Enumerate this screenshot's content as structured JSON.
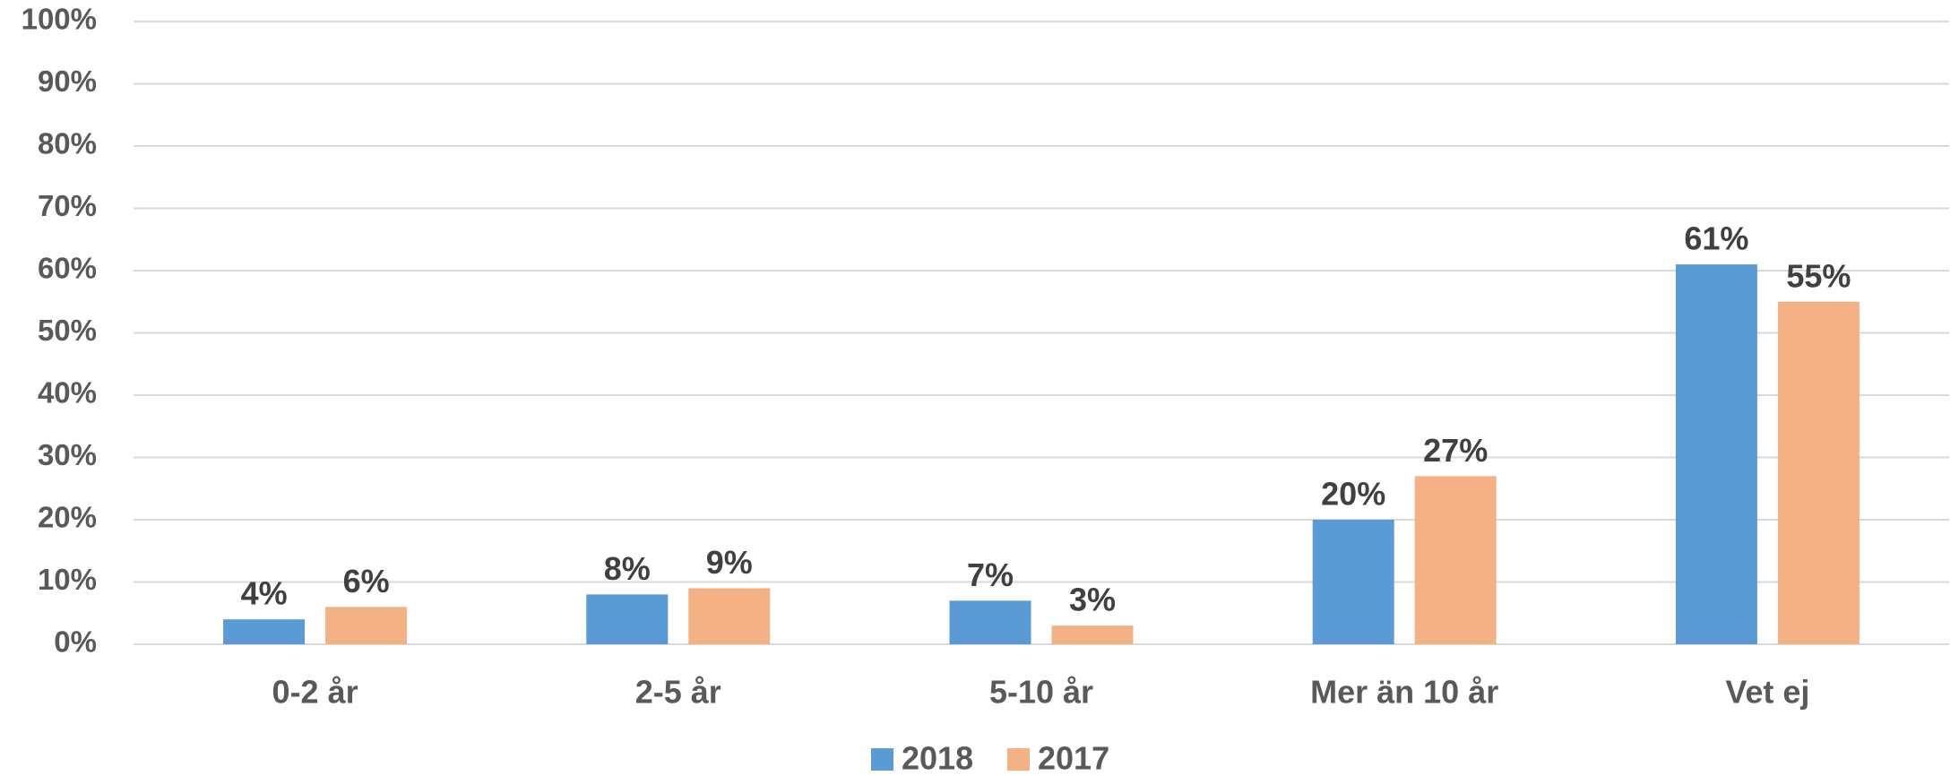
{
  "chart_data": {
    "type": "bar",
    "categories": [
      "0-2 år",
      "2-5 år",
      "5-10 år",
      "Mer än 10 år",
      "Vet ej"
    ],
    "series": [
      {
        "name": "2018",
        "color": "#5b9bd5",
        "values": [
          4,
          8,
          7,
          20,
          61
        ],
        "value_labels": [
          "4%",
          "8%",
          "7%",
          "20%",
          "61%"
        ]
      },
      {
        "name": "2017",
        "color": "#f4b183",
        "values": [
          6,
          9,
          3,
          27,
          55
        ],
        "value_labels": [
          "6%",
          "9%",
          "3%",
          "27%",
          "55%"
        ]
      }
    ],
    "ylim": [
      0,
      100
    ],
    "yticks": [
      {
        "value": 0,
        "label": "0%"
      },
      {
        "value": 10,
        "label": "10%"
      },
      {
        "value": 20,
        "label": "20%"
      },
      {
        "value": 30,
        "label": "30%"
      },
      {
        "value": 40,
        "label": "40%"
      },
      {
        "value": 50,
        "label": "50%"
      },
      {
        "value": 60,
        "label": "60%"
      },
      {
        "value": 70,
        "label": "70%"
      },
      {
        "value": 80,
        "label": "80%"
      },
      {
        "value": 90,
        "label": "90%"
      },
      {
        "value": 100,
        "label": "100%"
      }
    ],
    "grid": true,
    "legend": "bottom"
  }
}
